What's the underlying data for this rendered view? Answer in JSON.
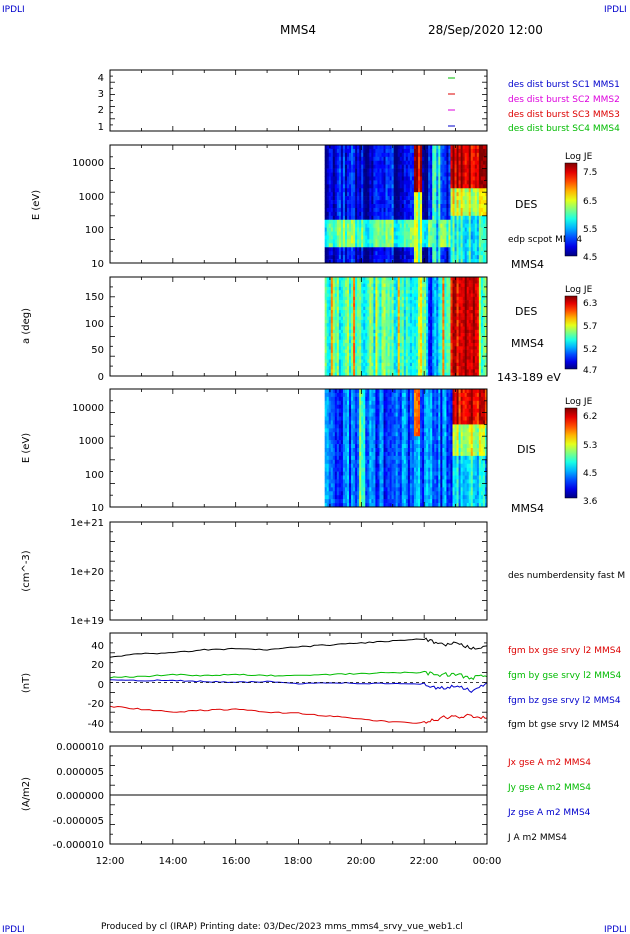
{
  "header": {
    "corner_tl": "IPDLI",
    "corner_tr": "IPDLI",
    "corner_bl": "IPDLI",
    "corner_br": "IPDLI",
    "spacecraft": "MMS4",
    "datetime": "28/Sep/2020 12:00"
  },
  "footer": {
    "text": "Produced by cl (IRAP)   Printing date: 03/Dec/2023   mms_mms4_srvy_vue_web1.cl"
  },
  "colors": {
    "blue": "#0000cc",
    "magenta": "#dd00dd",
    "red": "#dd0000",
    "green": "#00bb00",
    "black": "#000000"
  },
  "chart_data": [
    {
      "type": "scatter",
      "panel": "availability",
      "yticks": [
        "4",
        "3",
        "2",
        "1"
      ],
      "ylim": [
        0.5,
        4.5
      ],
      "legend": [
        {
          "label": "des dist burst SC1 MMS1",
          "color": "#0000cc"
        },
        {
          "label": "des dist burst SC2 MMS2",
          "color": "#dd00dd"
        },
        {
          "label": "des dist burst SC3 MMS3",
          "color": "#dd0000"
        },
        {
          "label": "des dist burst SC4 MMS4",
          "color": "#00bb00"
        }
      ],
      "points": [
        {
          "x": "23:00",
          "y": 4,
          "color": "#00bb00"
        },
        {
          "x": "23:00",
          "y": 3,
          "color": "#dd0000"
        },
        {
          "x": "23:00",
          "y": 2,
          "color": "#dd00dd"
        },
        {
          "x": "23:00",
          "y": 1,
          "color": "#0000cc"
        }
      ]
    },
    {
      "type": "heatmap",
      "panel": "des-energy",
      "ylabel": "E (eV)",
      "yscale": "log",
      "yticks": [
        "10000",
        "1000",
        "100",
        "10"
      ],
      "ylim": [
        10,
        30000
      ],
      "data_start": "18:50",
      "right_label": "DES",
      "right_sub": "edp scpot MMS4",
      "right_bottom": "MMS4",
      "colorbar": {
        "title": "Log JE",
        "ticks": [
          "7.5",
          "6.5",
          "5.5",
          "4.5"
        ],
        "range": [
          4.5,
          7.5
        ]
      }
    },
    {
      "type": "heatmap",
      "panel": "des-pitch",
      "ylabel": "a (deg)",
      "yticks": [
        "150",
        "100",
        "50",
        "0"
      ],
      "ylim": [
        0,
        180
      ],
      "data_start": "18:50",
      "right_label": "DES",
      "right_sub": "MMS4",
      "right_bottom": "143-189 eV",
      "colorbar": {
        "title": "Log JE",
        "ticks": [
          "6.3",
          "5.7",
          "5.2",
          "4.7"
        ],
        "range": [
          4.7,
          6.3
        ]
      }
    },
    {
      "type": "heatmap",
      "panel": "dis-energy",
      "ylabel": "E (eV)",
      "yscale": "log",
      "yticks": [
        "10000",
        "1000",
        "100",
        "10"
      ],
      "ylim": [
        10,
        30000
      ],
      "data_start": "18:50",
      "right_label": "DIS",
      "right_bottom": "MMS4",
      "colorbar": {
        "title": "Log JE",
        "ticks": [
          "6.2",
          "5.3",
          "4.5",
          "3.6"
        ],
        "range": [
          3.6,
          6.2
        ]
      }
    },
    {
      "type": "line",
      "panel": "density",
      "ylabel": "(cm^-3)",
      "yscale": "log",
      "yticks": [
        "1e+21",
        "1e+20",
        "1e+19"
      ],
      "ylim": [
        1e+19,
        1e+21
      ],
      "legend": [
        {
          "label": "des numberdensity fast M",
          "color": "#000000"
        }
      ]
    },
    {
      "type": "line",
      "panel": "fgm",
      "ylabel": "(nT)",
      "yticks": [
        "40",
        "20",
        "0",
        "-20",
        "-40"
      ],
      "ylim": [
        -50,
        50
      ],
      "legend": [
        {
          "label": "fgm bx gse srvy l2 MMS4",
          "color": "#dd0000"
        },
        {
          "label": "fgm by gse srvy l2 MMS4",
          "color": "#00bb00"
        },
        {
          "label": "fgm bz gse srvy l2 MMS4",
          "color": "#0000cc"
        },
        {
          "label": "fgm bt gse srvy l2 MMS4",
          "color": "#000000"
        }
      ],
      "x": [
        "12:00",
        "13:00",
        "14:00",
        "15:00",
        "16:00",
        "17:00",
        "18:00",
        "19:00",
        "20:00",
        "21:00",
        "22:00",
        "22:30",
        "23:00",
        "23:30",
        "00:00"
      ],
      "series": [
        {
          "name": "fgm bt gse srvy l2 MMS4",
          "color": "#000000",
          "values": [
            26,
            29,
            30,
            33,
            34,
            33,
            36,
            38,
            40,
            42,
            44,
            38,
            39,
            35,
            37
          ]
        },
        {
          "name": "fgm by gse srvy l2 MMS4",
          "color": "#00bb00",
          "values": [
            5,
            6,
            8,
            7,
            8,
            7,
            7,
            8,
            9,
            10,
            10,
            8,
            8,
            5,
            6
          ]
        },
        {
          "name": "fgm bz gse srvy l2 MMS4",
          "color": "#0000cc",
          "values": [
            3,
            2,
            2,
            1,
            0,
            1,
            -1,
            0,
            -1,
            -1,
            -2,
            -6,
            -4,
            -8,
            0
          ]
        },
        {
          "name": "fgm bx gse srvy l2 MMS4",
          "color": "#dd0000",
          "values": [
            -24,
            -27,
            -30,
            -28,
            -27,
            -30,
            -31,
            -34,
            -37,
            -40,
            -41,
            -36,
            -35,
            -33,
            -36
          ]
        }
      ]
    },
    {
      "type": "line",
      "panel": "current",
      "ylabel": "(A/m2)",
      "yticks": [
        "0.000010",
        "0.000005",
        "0.000000",
        "-0.000005",
        "-0.000010"
      ],
      "ylim": [
        -1e-05,
        1e-05
      ],
      "legend": [
        {
          "label": "Jx gse A m2 MMS4",
          "color": "#dd0000"
        },
        {
          "label": "Jy gse A m2 MMS4",
          "color": "#00bb00"
        },
        {
          "label": "Jz gse A m2 MMS4",
          "color": "#0000cc"
        },
        {
          "label": "J A m2 MMS4",
          "color": "#000000"
        }
      ],
      "x": [
        "12:00",
        "18:00",
        "22:00",
        "00:00"
      ],
      "series": [
        {
          "name": "J A m2 MMS4",
          "color": "#000000",
          "values": [
            0,
            0,
            0,
            0
          ]
        }
      ]
    }
  ],
  "xaxis": {
    "ticks": [
      "12:00",
      "14:00",
      "16:00",
      "18:00",
      "20:00",
      "22:00",
      "00:00"
    ]
  }
}
